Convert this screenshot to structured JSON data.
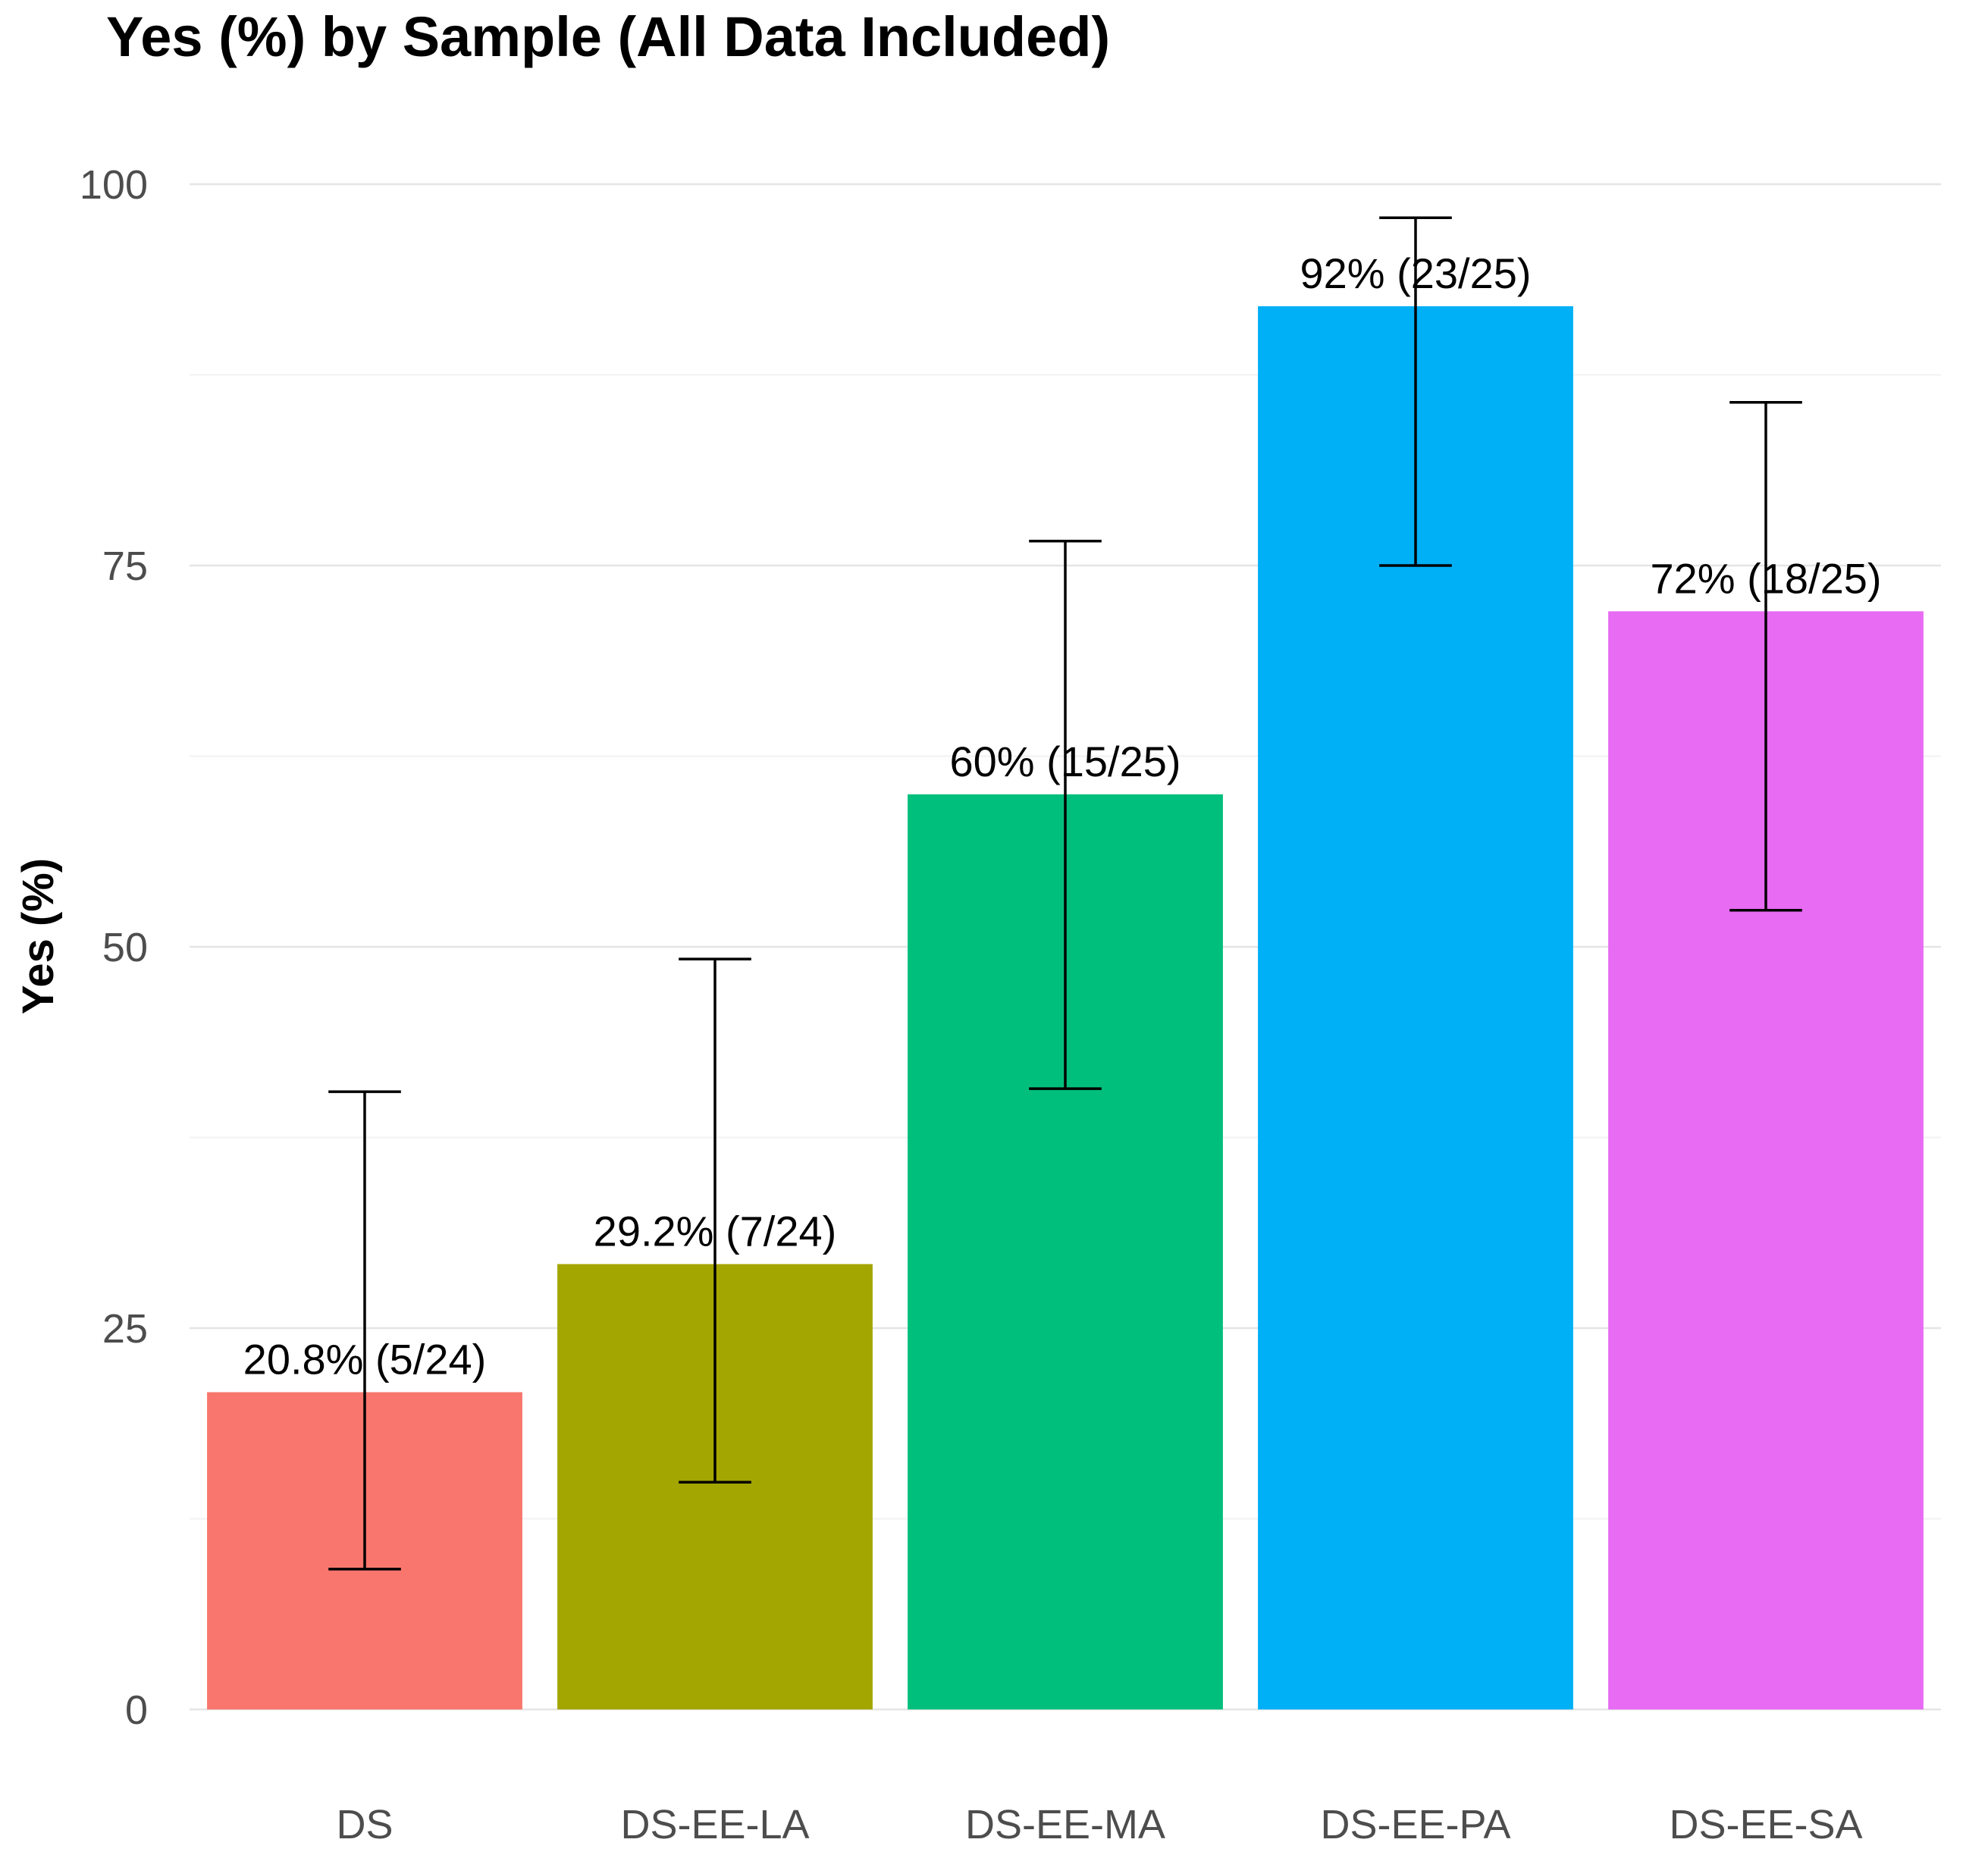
{
  "chart_data": {
    "type": "bar",
    "title": "Yes (%) by Sample (All Data Included)",
    "xlabel": "",
    "ylabel": "Yes (%)",
    "ylim": [
      0,
      100
    ],
    "yticks": [
      0,
      25,
      50,
      75,
      100
    ],
    "grid": true,
    "legend": "none",
    "background_color": "#FFFFFF",
    "major_grid_color": "#E5E5E5",
    "minor_grid_color": "#F2F2F2",
    "tick_label_color": "#4D4D4D",
    "bar_label_color": "#000000",
    "error_bar_color": "#000000",
    "categories": [
      "DS",
      "DS-EE-LA",
      "DS-EE-MA",
      "DS-EE-PA",
      "DS-EE-SA"
    ],
    "values": [
      20.8,
      29.2,
      60,
      92,
      72
    ],
    "bar_labels": [
      "20.8% (5/24)",
      "29.2% (7/24)",
      "60% (15/25)",
      "92% (23/25)",
      "72% (18/25)"
    ],
    "counts": [
      {
        "yes": 5,
        "n": 24
      },
      {
        "yes": 7,
        "n": 24
      },
      {
        "yes": 15,
        "n": 25
      },
      {
        "yes": 23,
        "n": 25
      },
      {
        "yes": 18,
        "n": 25
      }
    ],
    "error_low": [
      9.2,
      14.9,
      40.7,
      75.0,
      52.4
    ],
    "error_high": [
      40.5,
      49.2,
      76.6,
      97.8,
      85.7
    ],
    "bar_colors": [
      "#F8766D",
      "#A3A500",
      "#00BF7D",
      "#00B0F6",
      "#E76BF3"
    ]
  }
}
